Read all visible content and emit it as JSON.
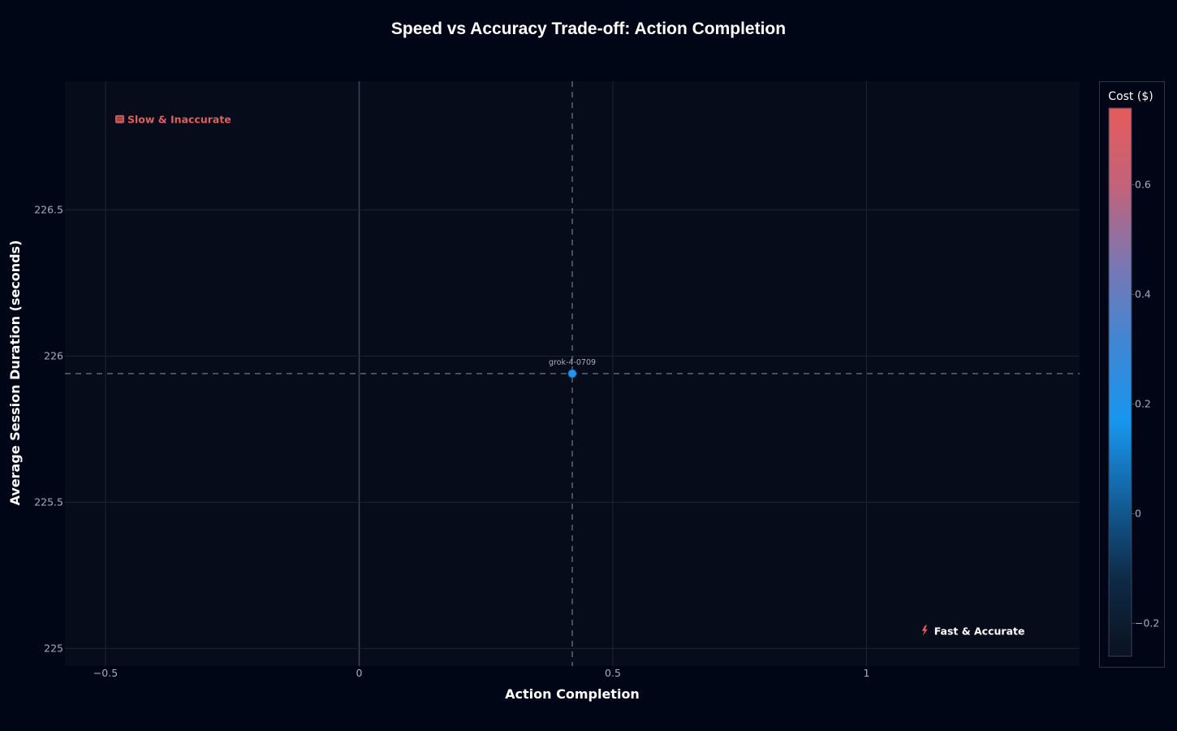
{
  "chart_data": {
    "type": "scatter",
    "title": "Speed vs Accuracy Trade-off: Action Completion",
    "xlabel": "Action Completion",
    "ylabel": "Average Session Duration (seconds)",
    "xlim": [
      -0.58,
      1.42
    ],
    "ylim": [
      224.94,
      226.94
    ],
    "x_ticks": [
      -0.5,
      0,
      0.5,
      1
    ],
    "x_tick_labels": [
      "−0.5",
      "0",
      "0.5",
      "1"
    ],
    "y_ticks": [
      225,
      225.5,
      226,
      226.5
    ],
    "y_tick_labels": [
      "225",
      "225.5",
      "226",
      "226.5"
    ],
    "grid": true,
    "points": [
      {
        "label": "grok-4-0709",
        "x": 0.42,
        "y": 225.94,
        "cost": 0.22
      }
    ],
    "reference_lines": {
      "x": 0.42,
      "y": 225.94
    },
    "colorbar": {
      "title": "Cost ($)",
      "range": [
        -0.26,
        0.74
      ],
      "ticks": [
        -0.2,
        0,
        0.2,
        0.4,
        0.6
      ],
      "tick_labels": [
        "−0.2",
        "0",
        "0.2",
        "0.4",
        "0.6"
      ],
      "colorscale": [
        "#0b1220",
        "#0e2a47",
        "#13609d",
        "#1896ee",
        "#3f86d4",
        "#7b77b3",
        "#c2627a",
        "#e55b5b"
      ]
    },
    "annotations": [
      {
        "text": "Slow & Inaccurate",
        "icon": "snail-icon",
        "x": -0.46,
        "y": 226.81,
        "color": "#e06060"
      },
      {
        "text": "Fast & Accurate",
        "icon": "lightning-icon",
        "x": 1.13,
        "y": 225.06,
        "color": "#ffffff"
      }
    ]
  },
  "colors": {
    "page_bg": "#010616",
    "plot_bg": "#070c1b",
    "grid": "#1b2535",
    "zero_line": "#3c4456",
    "ref_line": "#5b6678",
    "point": "#2396ec",
    "colorbar_border": "#2c3447"
  }
}
